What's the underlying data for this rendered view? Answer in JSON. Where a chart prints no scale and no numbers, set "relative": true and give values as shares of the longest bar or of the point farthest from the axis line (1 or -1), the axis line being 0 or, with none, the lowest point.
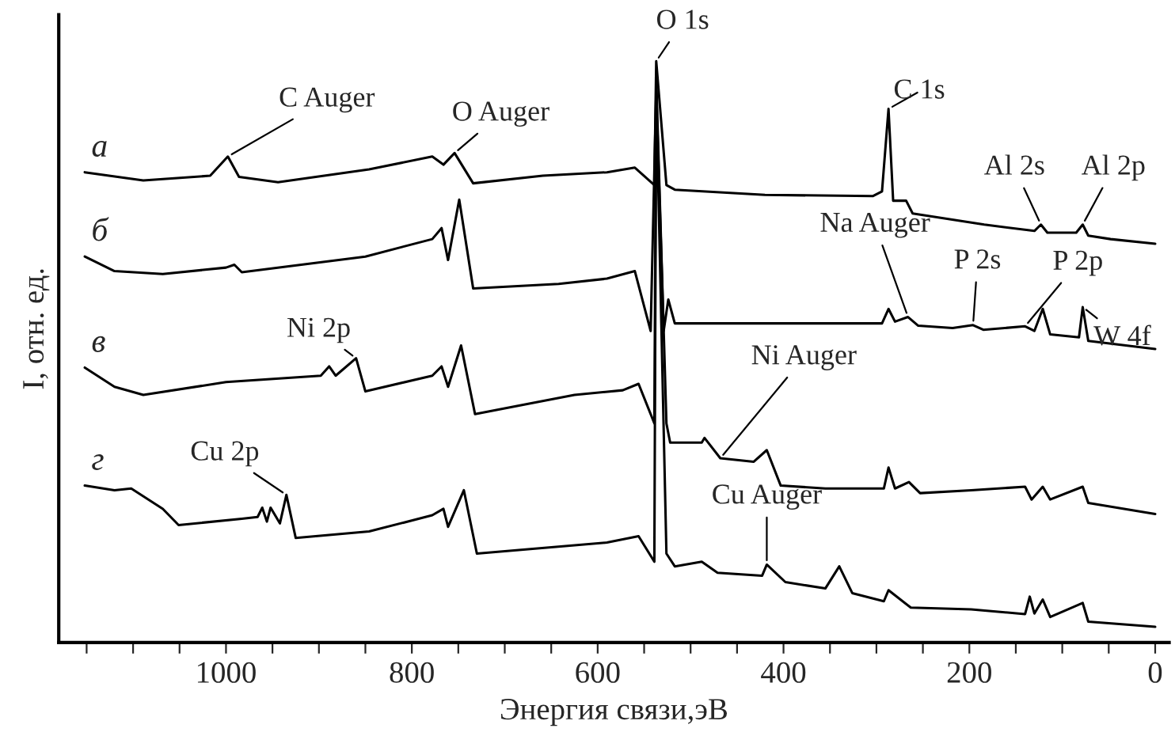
{
  "chart_data": {
    "type": "line",
    "relative": true,
    "xlabel": "Энергия связи,эВ",
    "ylabel": "I, отн. ед.",
    "xlim": [
      1180,
      -15
    ],
    "xticks": [
      {
        "value": 1150,
        "label": null
      },
      {
        "value": 1100,
        "label": null
      },
      {
        "value": 1050,
        "label": null
      },
      1000,
      {
        "value": 950,
        "label": null
      },
      {
        "value": 900,
        "label": null
      },
      {
        "value": 850,
        "label": null
      },
      800,
      {
        "value": 750,
        "label": null
      },
      {
        "value": 700,
        "label": null
      },
      {
        "value": 650,
        "label": null
      },
      600,
      {
        "value": 550,
        "label": null
      },
      {
        "value": 500,
        "label": null
      },
      {
        "value": 450,
        "label": null
      },
      400,
      {
        "value": 350,
        "label": null
      },
      {
        "value": 300,
        "label": null
      },
      {
        "value": 250,
        "label": null
      },
      200,
      {
        "value": 150,
        "label": null
      },
      {
        "value": 100,
        "label": null
      },
      {
        "value": 50,
        "label": null
      },
      0
    ],
    "grid": false,
    "marker": "none",
    "line_style": "solid",
    "series": [
      {
        "name": "а",
        "color": "#000000",
        "x": [
          1152,
          1089,
          1017,
          998,
          986,
          944,
          846,
          778,
          766,
          754,
          734,
          659,
          590,
          560,
          539,
          537,
          526,
          517,
          420,
          304,
          294,
          287,
          282,
          268,
          261,
          184,
          130,
          123,
          116,
          85,
          78,
          72,
          48,
          0
        ],
        "values": [
          0.809,
          0.795,
          0.803,
          0.836,
          0.801,
          0.792,
          0.814,
          0.836,
          0.822,
          0.842,
          0.79,
          0.803,
          0.809,
          0.817,
          0.787,
          1.0,
          0.787,
          0.779,
          0.77,
          0.768,
          0.776,
          0.918,
          0.76,
          0.76,
          0.738,
          0.719,
          0.708,
          0.719,
          0.705,
          0.705,
          0.719,
          0.7,
          0.694,
          0.686
        ]
      },
      {
        "name": "б",
        "color": "#000000",
        "x": [
          1152,
          1120,
          1068,
          1000,
          991,
          983,
          850,
          778,
          768,
          761,
          749,
          734,
          642,
          590,
          560,
          543,
          537,
          529,
          524,
          517,
          389,
          294,
          287,
          280,
          266,
          255,
          218,
          196,
          185,
          140,
          130,
          121,
          113,
          82,
          78,
          72,
          0
        ],
        "values": [
          0.664,
          0.639,
          0.634,
          0.645,
          0.65,
          0.637,
          0.664,
          0.694,
          0.713,
          0.658,
          0.762,
          0.609,
          0.617,
          0.626,
          0.639,
          0.536,
          0.95,
          0.536,
          0.59,
          0.549,
          0.549,
          0.549,
          0.574,
          0.552,
          0.56,
          0.545,
          0.541,
          0.546,
          0.538,
          0.544,
          0.536,
          0.574,
          0.53,
          0.525,
          0.577,
          0.519,
          0.505
        ]
      },
      {
        "name": "в",
        "color": "#000000",
        "x": [
          1152,
          1120,
          1089,
          1000,
          898,
          889,
          882,
          860,
          850,
          778,
          768,
          761,
          747,
          732,
          625,
          573,
          556,
          539,
          537,
          526,
          522,
          488,
          485,
          468,
          432,
          418,
          403,
          355,
          292,
          287,
          280,
          265,
          253,
          198,
          140,
          133,
          121,
          113,
          78,
          72,
          0
        ],
        "values": [
          0.473,
          0.44,
          0.426,
          0.448,
          0.459,
          0.475,
          0.459,
          0.489,
          0.432,
          0.459,
          0.475,
          0.44,
          0.511,
          0.393,
          0.426,
          0.434,
          0.445,
          0.377,
          0.97,
          0.377,
          0.344,
          0.344,
          0.352,
          0.317,
          0.311,
          0.331,
          0.27,
          0.265,
          0.265,
          0.301,
          0.265,
          0.276,
          0.257,
          0.262,
          0.268,
          0.246,
          0.268,
          0.246,
          0.268,
          0.24,
          0.221
        ]
      },
      {
        "name": "г",
        "color": "#000000",
        "x": [
          1152,
          1120,
          1102,
          1068,
          1051,
          983,
          966,
          961,
          956,
          952,
          942,
          935,
          925,
          846,
          778,
          766,
          761,
          744,
          730,
          590,
          556,
          539,
          537,
          526,
          517,
          488,
          471,
          423,
          418,
          398,
          355,
          340,
          326,
          292,
          287,
          263,
          198,
          140,
          135,
          130,
          121,
          113,
          78,
          72,
          0
        ],
        "values": [
          0.27,
          0.262,
          0.265,
          0.23,
          0.202,
          0.213,
          0.216,
          0.232,
          0.208,
          0.232,
          0.205,
          0.254,
          0.18,
          0.191,
          0.219,
          0.23,
          0.199,
          0.262,
          0.153,
          0.172,
          0.183,
          0.139,
          0.945,
          0.153,
          0.131,
          0.139,
          0.12,
          0.115,
          0.134,
          0.104,
          0.093,
          0.131,
          0.085,
          0.071,
          0.09,
          0.06,
          0.057,
          0.049,
          0.079,
          0.05,
          0.074,
          0.044,
          0.068,
          0.036,
          0.027
        ]
      }
    ],
    "annotations": [
      {
        "text": "C Auger",
        "x": 998,
        "y": 0.836
      },
      {
        "text": "O Auger",
        "x": 754,
        "y": 0.842
      },
      {
        "text": "O 1s",
        "x": 537,
        "y": 1.0
      },
      {
        "text": "C 1s",
        "x": 287,
        "y": 0.918
      },
      {
        "text": "Al 2s",
        "x": 123,
        "y": 0.719
      },
      {
        "text": "Al 2p",
        "x": 78,
        "y": 0.719
      },
      {
        "text": "Na Auger",
        "x": 266,
        "y": 0.56
      },
      {
        "text": "P 2s",
        "x": 196,
        "y": 0.546
      },
      {
        "text": "P 2p",
        "x": 140,
        "y": 0.544
      },
      {
        "text": "W 4f",
        "x": 78,
        "y": 0.577
      },
      {
        "text": "Ni 2p",
        "x": 860,
        "y": 0.489
      },
      {
        "text": "Cu 2p",
        "x": 935,
        "y": 0.254
      },
      {
        "text": "Ni Auger",
        "x": 468,
        "y": 0.317
      },
      {
        "text": "Cu Auger",
        "x": 418,
        "y": 0.134
      }
    ]
  }
}
